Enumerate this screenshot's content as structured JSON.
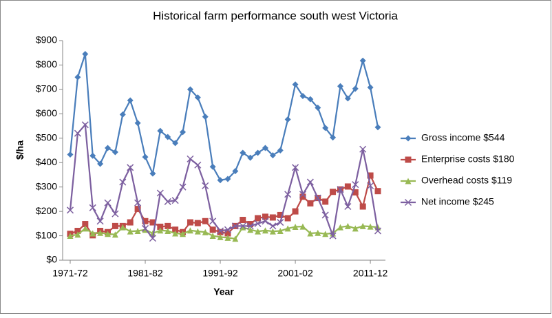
{
  "chart_data": {
    "type": "line",
    "title": "Historical farm performance south west Victoria",
    "x_label": "Year",
    "y_label": "$/ha",
    "categories": [
      "1971-72",
      null,
      null,
      null,
      null,
      null,
      null,
      null,
      null,
      null,
      "1981-82",
      null,
      null,
      null,
      null,
      null,
      null,
      null,
      null,
      null,
      "1991-92",
      null,
      null,
      null,
      null,
      null,
      null,
      null,
      null,
      null,
      "2001-02",
      null,
      null,
      null,
      null,
      null,
      null,
      null,
      null,
      null,
      "2011-12",
      null
    ],
    "series": [
      {
        "name": "Gross income $544",
        "color": "#4a7ebb",
        "marker": "diamond",
        "values": [
          433,
          750,
          845,
          428,
          395,
          460,
          443,
          597,
          655,
          562,
          423,
          355,
          530,
          505,
          480,
          525,
          700,
          667,
          588,
          383,
          328,
          333,
          365,
          440,
          420,
          440,
          460,
          430,
          450,
          577,
          720,
          673,
          660,
          625,
          542,
          503,
          713,
          663,
          703,
          818,
          708,
          545
        ]
      },
      {
        "name": "Enterprise costs $180",
        "color": "#be4b48",
        "marker": "square",
        "values": [
          108,
          120,
          148,
          102,
          120,
          115,
          140,
          140,
          155,
          210,
          160,
          155,
          137,
          140,
          125,
          115,
          155,
          152,
          160,
          125,
          115,
          110,
          140,
          165,
          148,
          172,
          178,
          175,
          185,
          172,
          200,
          260,
          233,
          255,
          240,
          280,
          290,
          302,
          278,
          220,
          347,
          283
        ]
      },
      {
        "name": "Overhead costs $119",
        "color": "#98b954",
        "marker": "triangle",
        "values": [
          100,
          105,
          130,
          110,
          112,
          108,
          105,
          135,
          118,
          120,
          125,
          110,
          122,
          120,
          110,
          108,
          122,
          118,
          115,
          100,
          95,
          92,
          88,
          135,
          125,
          118,
          122,
          118,
          120,
          130,
          137,
          138,
          110,
          112,
          108,
          110,
          135,
          140,
          130,
          140,
          138,
          135
        ]
      },
      {
        "name": "Net income $245",
        "color": "#7d60a0",
        "marker": "x",
        "values": [
          205,
          520,
          555,
          215,
          160,
          235,
          190,
          320,
          380,
          235,
          130,
          90,
          275,
          240,
          245,
          300,
          415,
          390,
          305,
          160,
          120,
          125,
          140,
          140,
          140,
          150,
          160,
          140,
          155,
          270,
          380,
          270,
          320,
          255,
          185,
          100,
          290,
          220,
          310,
          455,
          305,
          120
        ]
      }
    ],
    "ylim": [
      0,
      900
    ],
    "yticks": [
      {
        "value": 0,
        "label": "$0"
      },
      {
        "value": 100,
        "label": "$100"
      },
      {
        "value": 200,
        "label": "$200"
      },
      {
        "value": 300,
        "label": "$300"
      },
      {
        "value": 400,
        "label": "$400"
      },
      {
        "value": 500,
        "label": "$500"
      },
      {
        "value": 600,
        "label": "$600"
      },
      {
        "value": 700,
        "label": "$700"
      },
      {
        "value": 800,
        "label": "$800"
      },
      {
        "value": 900,
        "label": "$900"
      }
    ],
    "grid": false,
    "legend": "right"
  }
}
